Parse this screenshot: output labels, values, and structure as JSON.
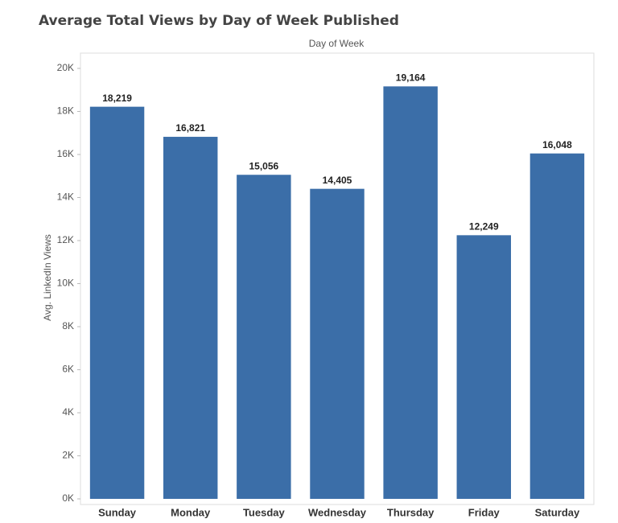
{
  "chart_data": {
    "type": "bar",
    "title": "Average Total Views by Day of Week Published",
    "x_label": "Day of Week",
    "y_label": "Avg. LinkedIn Views",
    "categories": [
      "Sunday",
      "Monday",
      "Tuesday",
      "Wednesday",
      "Thursday",
      "Friday",
      "Saturday"
    ],
    "values": [
      18219,
      16821,
      15056,
      14405,
      19164,
      12249,
      16048
    ],
    "value_labels": [
      "18,219",
      "16,821",
      "15,056",
      "14,405",
      "19,164",
      "12,249",
      "16,048"
    ],
    "color": "#3b6ea8",
    "ylim": [
      0,
      20000
    ],
    "yticks": [
      {
        "value": 0,
        "label": "0K"
      },
      {
        "value": 2000,
        "label": "2K"
      },
      {
        "value": 4000,
        "label": "4K"
      },
      {
        "value": 6000,
        "label": "6K"
      },
      {
        "value": 8000,
        "label": "8K"
      },
      {
        "value": 10000,
        "label": "10K"
      },
      {
        "value": 12000,
        "label": "12K"
      },
      {
        "value": 14000,
        "label": "14K"
      },
      {
        "value": 16000,
        "label": "16K"
      },
      {
        "value": 18000,
        "label": "18K"
      },
      {
        "value": 20000,
        "label": "20K"
      }
    ],
    "grid": false
  }
}
